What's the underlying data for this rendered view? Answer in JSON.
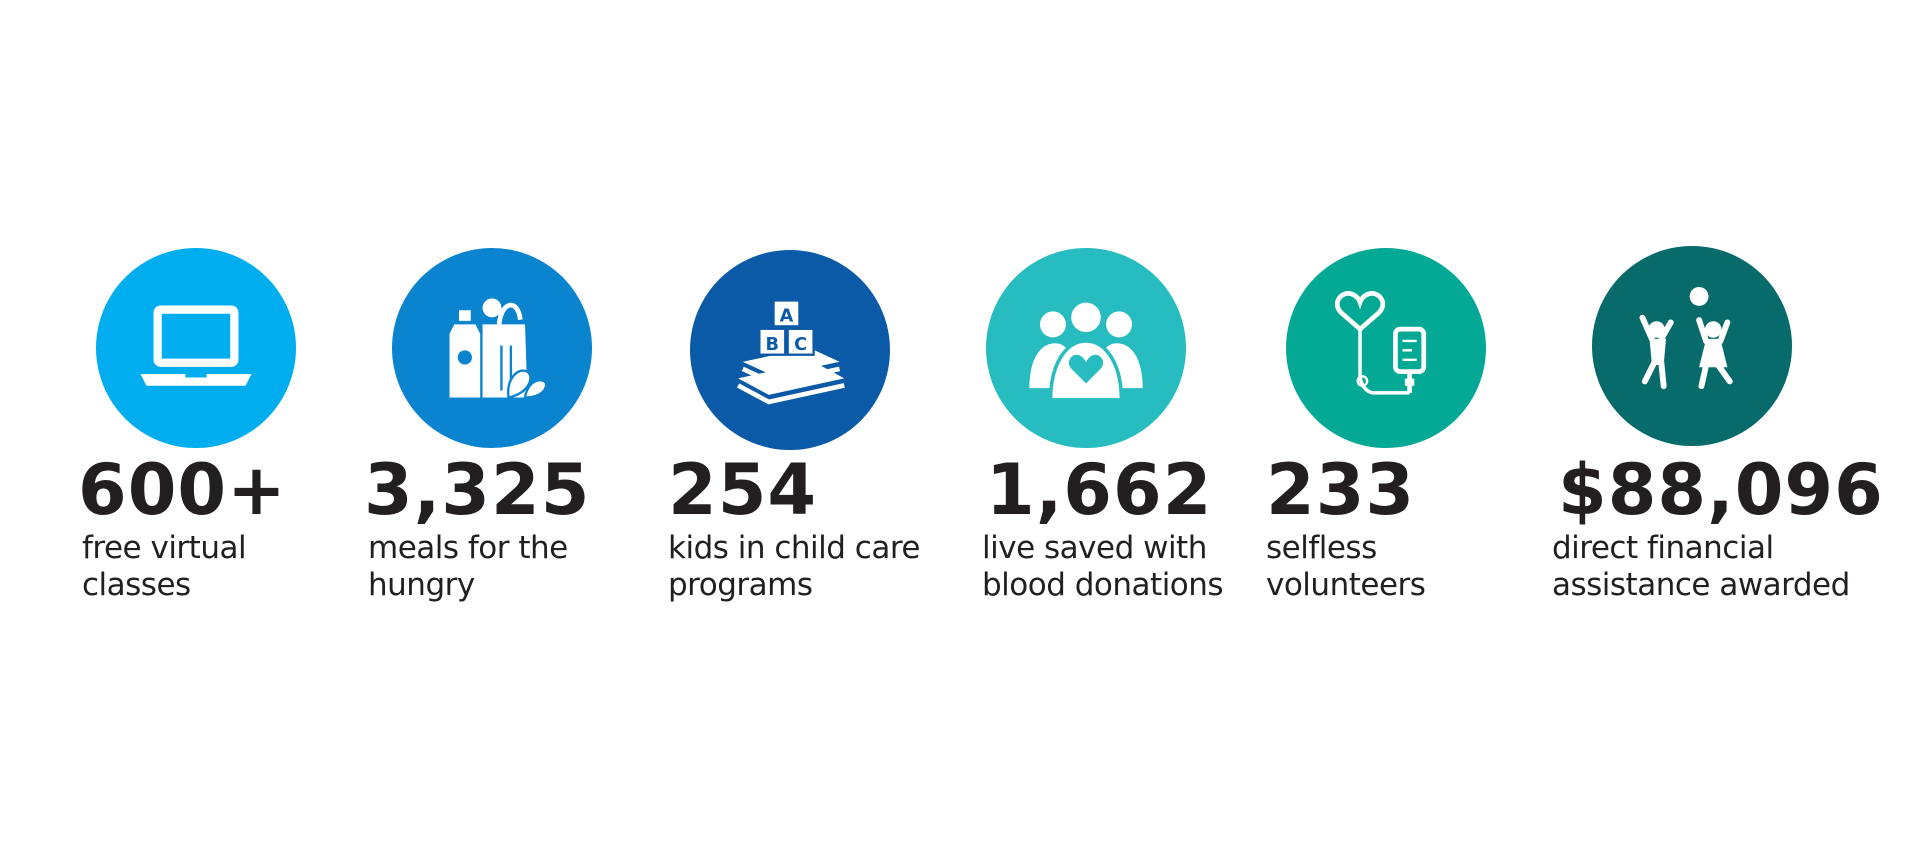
{
  "stats": [
    {
      "value": "600+",
      "line1": "free virtual",
      "line2": "classes",
      "color": "#00aeef",
      "icon": "laptop-icon"
    },
    {
      "value": "3,325",
      "line1": "meals for the",
      "line2": "hungry",
      "color": "#0a84cf",
      "icon": "groceries-icon"
    },
    {
      "value": "254",
      "line1": "kids in child care",
      "line2": "programs",
      "color": "#0b5aa8",
      "icon": "abc-blocks-books-icon"
    },
    {
      "value": "1,662",
      "line1": "live saved with",
      "line2": "blood donations",
      "color": "#27bcbf",
      "icon": "people-heart-icon"
    },
    {
      "value": "233",
      "line1": "selfless",
      "line2": "volunteers",
      "color": "#04a995",
      "icon": "iv-bag-heart-icon"
    },
    {
      "value": "$88,096",
      "line1": "direct financial",
      "line2": "assistance awarded",
      "color": "#066b6a",
      "icon": "kids-playing-ball-icon"
    }
  ]
}
